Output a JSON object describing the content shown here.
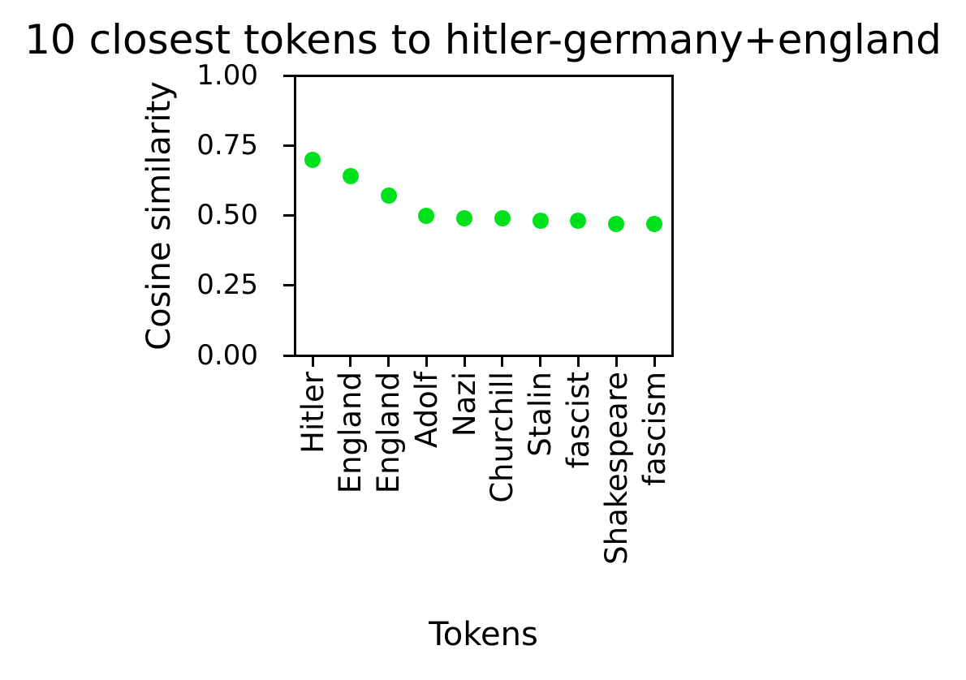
{
  "figure": {
    "background_color": "#ffffff",
    "text_color": "#000000"
  },
  "chart_data": {
    "type": "scatter",
    "title": "10 closest tokens to hitler-germany+england",
    "xlabel": "Tokens",
    "ylabel": "Cosine similarity",
    "categories": [
      "Hitler",
      "England",
      "England",
      "Adolf",
      "Nazi",
      "Churchill",
      "Stalin",
      "fascist",
      "Shakespeare",
      "fascism"
    ],
    "values": [
      0.7,
      0.64,
      0.57,
      0.5,
      0.49,
      0.49,
      0.48,
      0.48,
      0.47,
      0.47
    ],
    "ylim": [
      0.0,
      1.0
    ],
    "yticks": [
      0.0,
      0.25,
      0.5,
      0.75,
      1.0
    ],
    "ytick_labels": [
      "0.00",
      "0.25",
      "0.50",
      "0.75",
      "1.00"
    ],
    "marker_color": "#00e11e",
    "marker_shape": "circle",
    "grid": false,
    "legend": null,
    "x_tick_label_rotation_deg": 90
  }
}
